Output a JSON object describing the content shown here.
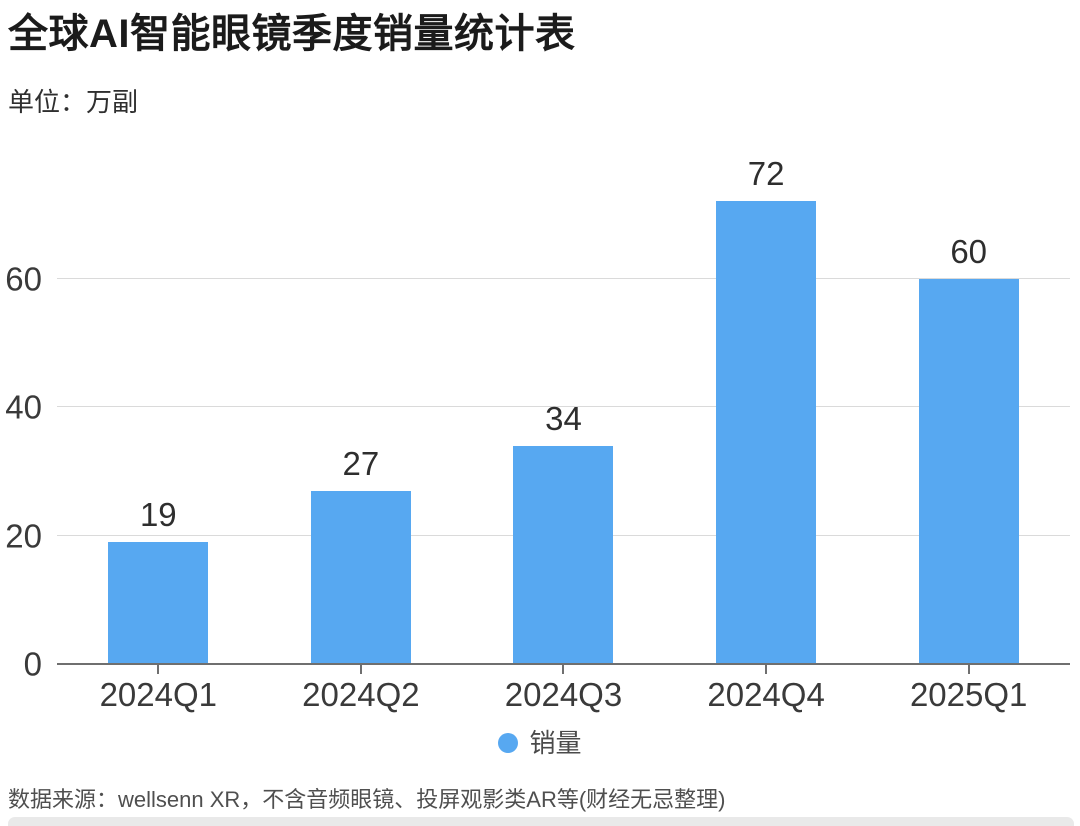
{
  "page": {
    "title": "全球AI智能眼镜季度销量统计表",
    "unit_label": "单位：万副",
    "source": "数据来源：wellsenn XR，不含音频眼镜、投屏观影类AR等(财经无忌整理)"
  },
  "chart_data": {
    "type": "bar",
    "title": "全球AI智能眼镜季度销量统计表",
    "unit": "万副",
    "categories": [
      "2024Q1",
      "2024Q2",
      "2024Q3",
      "2024Q4",
      "2025Q1"
    ],
    "series": [
      {
        "name": "销量",
        "values": [
          19,
          27,
          34,
          72,
          60
        ]
      }
    ],
    "value_labels": [
      19,
      27,
      34,
      72,
      60
    ],
    "ylim": [
      0,
      80
    ],
    "yticks": [
      0,
      20,
      40,
      60
    ],
    "grid": true,
    "legend_position": "bottom",
    "bar_color": "#57a8f1",
    "gridline_color": "#dadada",
    "axis_color": "#6f6f6f"
  },
  "legend": {
    "items": [
      {
        "label": "销量",
        "color": "#57a8f1"
      }
    ]
  }
}
